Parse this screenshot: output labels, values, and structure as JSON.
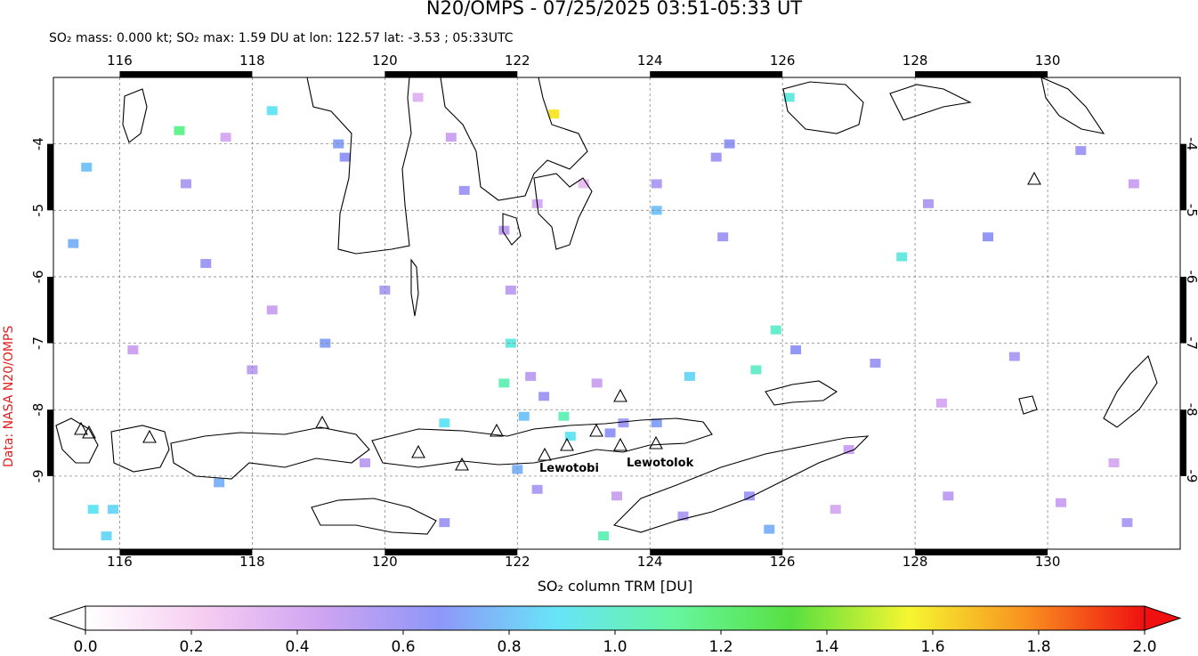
{
  "title": "N20/OMPS - 07/25/2025 03:51-05:33 UT",
  "subtitle": "SO₂ mass: 0.000 kt; SO₂ max: 1.59 DU at lon: 122.57 lat: -3.53 ; 05:33UTC",
  "side_label": "Data: NASA N20/OMPS",
  "map": {
    "xlim": [
      115,
      132
    ],
    "ylim": [
      -10.1,
      -3.0
    ],
    "xticks": [
      116,
      118,
      120,
      122,
      124,
      126,
      128,
      130
    ],
    "yticks": [
      -4,
      -5,
      -6,
      -7,
      -8,
      -9
    ],
    "grid": true,
    "volcano_labels": [
      "Lewotobi",
      "Lewotolok"
    ],
    "pixels": [
      {
        "lon": 122.55,
        "lat": -3.55,
        "value": 1.59
      },
      {
        "lon": 115.3,
        "lat": -5.5,
        "value": 0.75
      },
      {
        "lon": 115.5,
        "lat": -4.35,
        "value": 0.8
      },
      {
        "lon": 116.9,
        "lat": -3.8,
        "value": 1.15
      },
      {
        "lon": 117.0,
        "lat": -4.6,
        "value": 0.55
      },
      {
        "lon": 117.6,
        "lat": -3.9,
        "value": 0.4
      },
      {
        "lon": 118.3,
        "lat": -3.5,
        "value": 0.9
      },
      {
        "lon": 119.3,
        "lat": -4.0,
        "value": 0.7
      },
      {
        "lon": 120.5,
        "lat": -3.3,
        "value": 0.35
      },
      {
        "lon": 121.2,
        "lat": -4.7,
        "value": 0.6
      },
      {
        "lon": 121.0,
        "lat": -3.9,
        "value": 0.45
      },
      {
        "lon": 121.8,
        "lat": -5.3,
        "value": 0.5
      },
      {
        "lon": 122.3,
        "lat": -4.9,
        "value": 0.4
      },
      {
        "lon": 123.0,
        "lat": -4.6,
        "value": 0.3
      },
      {
        "lon": 124.1,
        "lat": -4.6,
        "value": 0.55
      },
      {
        "lon": 124.1,
        "lat": -5.0,
        "value": 0.8
      },
      {
        "lon": 125.0,
        "lat": -4.2,
        "value": 0.6
      },
      {
        "lon": 125.2,
        "lat": -4.0,
        "value": 0.65
      },
      {
        "lon": 125.1,
        "lat": -5.4,
        "value": 0.6
      },
      {
        "lon": 126.1,
        "lat": -3.3,
        "value": 0.95
      },
      {
        "lon": 127.8,
        "lat": -5.7,
        "value": 0.95
      },
      {
        "lon": 128.2,
        "lat": -4.9,
        "value": 0.55
      },
      {
        "lon": 129.1,
        "lat": -5.4,
        "value": 0.65
      },
      {
        "lon": 130.5,
        "lat": -4.1,
        "value": 0.6
      },
      {
        "lon": 131.3,
        "lat": -4.6,
        "value": 0.45
      },
      {
        "lon": 129.5,
        "lat": -7.2,
        "value": 0.55
      },
      {
        "lon": 127.4,
        "lat": -7.3,
        "value": 0.6
      },
      {
        "lon": 126.2,
        "lat": -7.1,
        "value": 0.65
      },
      {
        "lon": 125.9,
        "lat": -6.8,
        "value": 1.0
      },
      {
        "lon": 125.6,
        "lat": -7.4,
        "value": 1.0
      },
      {
        "lon": 124.6,
        "lat": -7.5,
        "value": 0.85
      },
      {
        "lon": 122.2,
        "lat": -7.5,
        "value": 0.5
      },
      {
        "lon": 121.9,
        "lat": -7.0,
        "value": 0.95
      },
      {
        "lon": 121.8,
        "lat": -7.6,
        "value": 1.05
      },
      {
        "lon": 122.4,
        "lat": -7.8,
        "value": 0.6
      },
      {
        "lon": 123.2,
        "lat": -7.6,
        "value": 0.45
      },
      {
        "lon": 122.7,
        "lat": -8.1,
        "value": 1.05
      },
      {
        "lon": 120.9,
        "lat": -8.2,
        "value": 0.9
      },
      {
        "lon": 122.1,
        "lat": -8.1,
        "value": 0.8
      },
      {
        "lon": 123.6,
        "lat": -8.2,
        "value": 0.6
      },
      {
        "lon": 124.1,
        "lat": -8.2,
        "value": 0.7
      },
      {
        "lon": 122.8,
        "lat": -8.4,
        "value": 0.9
      },
      {
        "lon": 123.4,
        "lat": -8.35,
        "value": 0.65
      },
      {
        "lon": 119.1,
        "lat": -7.0,
        "value": 0.7
      },
      {
        "lon": 118.0,
        "lat": -7.4,
        "value": 0.5
      },
      {
        "lon": 116.2,
        "lat": -7.1,
        "value": 0.45
      },
      {
        "lon": 119.7,
        "lat": -8.8,
        "value": 0.5
      },
      {
        "lon": 115.6,
        "lat": -9.5,
        "value": 0.9
      },
      {
        "lon": 115.9,
        "lat": -9.5,
        "value": 0.85
      },
      {
        "lon": 115.8,
        "lat": -9.9,
        "value": 0.85
      },
      {
        "lon": 117.5,
        "lat": -9.1,
        "value": 0.75
      },
      {
        "lon": 122.0,
        "lat": -8.9,
        "value": 0.75
      },
      {
        "lon": 122.3,
        "lat": -9.2,
        "value": 0.55
      },
      {
        "lon": 123.5,
        "lat": -9.3,
        "value": 0.45
      },
      {
        "lon": 124.5,
        "lat": -9.6,
        "value": 0.55
      },
      {
        "lon": 125.5,
        "lat": -9.3,
        "value": 0.6
      },
      {
        "lon": 125.8,
        "lat": -9.8,
        "value": 0.75
      },
      {
        "lon": 123.3,
        "lat": -9.9,
        "value": 1.05
      },
      {
        "lon": 120.9,
        "lat": -9.7,
        "value": 0.6
      },
      {
        "lon": 126.8,
        "lat": -9.5,
        "value": 0.4
      },
      {
        "lon": 128.5,
        "lat": -9.3,
        "value": 0.5
      },
      {
        "lon": 130.2,
        "lat": -9.4,
        "value": 0.45
      },
      {
        "lon": 131.0,
        "lat": -8.8,
        "value": 0.4
      },
      {
        "lon": 131.2,
        "lat": -9.7,
        "value": 0.55
      },
      {
        "lon": 127.0,
        "lat": -8.6,
        "value": 0.45
      },
      {
        "lon": 128.4,
        "lat": -7.9,
        "value": 0.4
      },
      {
        "lon": 119.4,
        "lat": -4.2,
        "value": 0.65
      },
      {
        "lon": 117.3,
        "lat": -5.8,
        "value": 0.6
      },
      {
        "lon": 118.3,
        "lat": -6.5,
        "value": 0.45
      },
      {
        "lon": 120.0,
        "lat": -6.2,
        "value": 0.55
      },
      {
        "lon": 121.9,
        "lat": -6.2,
        "value": 0.5
      }
    ]
  },
  "colorbar": {
    "label": "SO₂ column TRM [DU]",
    "clim": [
      0,
      2
    ],
    "ticks": [
      {
        "value": 0,
        "label": "0.0"
      },
      {
        "value": 0.2,
        "label": "0.2"
      },
      {
        "value": 0.4,
        "label": "0.4"
      },
      {
        "value": 0.6,
        "label": "0.6"
      },
      {
        "value": 0.8,
        "label": "0.8"
      },
      {
        "value": 1,
        "label": "1.0"
      },
      {
        "value": 1.2,
        "label": "1.2"
      },
      {
        "value": 1.4,
        "label": "1.4"
      },
      {
        "value": 1.6,
        "label": "1.6"
      },
      {
        "value": 1.8,
        "label": "1.8"
      },
      {
        "value": 2,
        "label": "2.0"
      }
    ],
    "colors": [
      "#ffffff",
      "#f6cdf2",
      "#cfa4f2",
      "#8e97f8",
      "#68e4f8",
      "#66f6a0",
      "#58e040",
      "#f6f630",
      "#f89020",
      "#f01010"
    ]
  }
}
